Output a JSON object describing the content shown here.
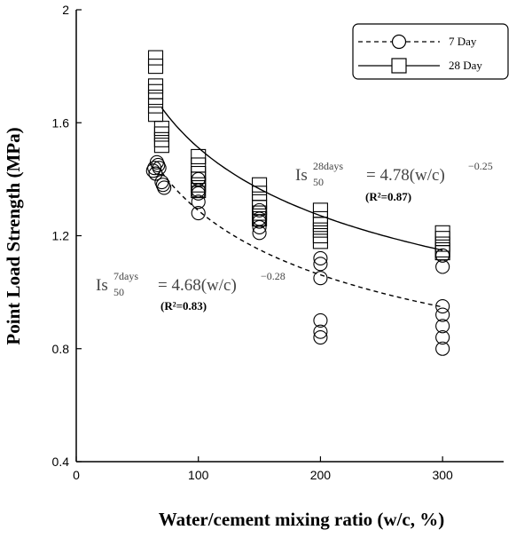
{
  "chart_data": {
    "type": "scatter",
    "title": "",
    "xlabel": "Water/cement mixing ratio (w/c, %)",
    "ylabel": "Point Load Strength (MPa)",
    "xlim": [
      0,
      350
    ],
    "ylim": [
      0.4,
      2.0
    ],
    "xticks": [
      0,
      100,
      200,
      300
    ],
    "yticks": [
      0.4,
      0.8,
      1.2,
      1.6,
      2.0
    ],
    "xtick_labels": [
      "0",
      "100",
      "200",
      "300"
    ],
    "ytick_labels": [
      "0.4",
      "0.8",
      "1.2",
      "1.6",
      "2"
    ],
    "grid": false,
    "legend_position": "top-right",
    "series": [
      {
        "name": "7 Day",
        "marker": "circle",
        "line_style": "dashed",
        "fit": {
          "a": 4.68,
          "b": -0.28,
          "x_from": 70,
          "x_to": 300
        },
        "points": [
          [
            63,
            1.43
          ],
          [
            64,
            1.44
          ],
          [
            65,
            1.42
          ],
          [
            66,
            1.46
          ],
          [
            67,
            1.45
          ],
          [
            68,
            1.44
          ],
          [
            70,
            1.39
          ],
          [
            71,
            1.38
          ],
          [
            72,
            1.37
          ],
          [
            100,
            1.4
          ],
          [
            100,
            1.36
          ],
          [
            100,
            1.35
          ],
          [
            100,
            1.32
          ],
          [
            100,
            1.28
          ],
          [
            150,
            1.29
          ],
          [
            150,
            1.26
          ],
          [
            150,
            1.25
          ],
          [
            150,
            1.23
          ],
          [
            150,
            1.21
          ],
          [
            200,
            1.12
          ],
          [
            200,
            1.1
          ],
          [
            200,
            1.05
          ],
          [
            200,
            0.9
          ],
          [
            200,
            0.86
          ],
          [
            200,
            0.84
          ],
          [
            300,
            1.13
          ],
          [
            300,
            1.09
          ],
          [
            300,
            0.95
          ],
          [
            300,
            0.92
          ],
          [
            300,
            0.88
          ],
          [
            300,
            0.84
          ],
          [
            300,
            0.8
          ]
        ]
      },
      {
        "name": "28 Day",
        "marker": "square",
        "line_style": "solid",
        "fit": {
          "a": 4.78,
          "b": -0.25,
          "x_from": 70,
          "x_to": 300
        },
        "points": [
          [
            65,
            1.83
          ],
          [
            65,
            1.8
          ],
          [
            65,
            1.73
          ],
          [
            65,
            1.71
          ],
          [
            65,
            1.69
          ],
          [
            65,
            1.66
          ],
          [
            65,
            1.63
          ],
          [
            70,
            1.58
          ],
          [
            70,
            1.56
          ],
          [
            70,
            1.54
          ],
          [
            70,
            1.52
          ],
          [
            100,
            1.48
          ],
          [
            100,
            1.45
          ],
          [
            100,
            1.42
          ],
          [
            100,
            1.4
          ],
          [
            100,
            1.38
          ],
          [
            100,
            1.36
          ],
          [
            150,
            1.38
          ],
          [
            150,
            1.35
          ],
          [
            150,
            1.32
          ],
          [
            150,
            1.3
          ],
          [
            150,
            1.28
          ],
          [
            150,
            1.26
          ],
          [
            200,
            1.29
          ],
          [
            200,
            1.26
          ],
          [
            200,
            1.24
          ],
          [
            200,
            1.22
          ],
          [
            200,
            1.2
          ],
          [
            200,
            1.18
          ],
          [
            300,
            1.21
          ],
          [
            300,
            1.19
          ],
          [
            300,
            1.17
          ],
          [
            300,
            1.15
          ],
          [
            300,
            1.14
          ]
        ]
      }
    ],
    "annotations": [
      {
        "id": "eq28",
        "base": "Is",
        "sup": "28days",
        "sub": "50",
        "rhs": "= 4.78(w/c)",
        "exp": "−0.25",
        "r2": "(R²=0.87)"
      },
      {
        "id": "eq7",
        "base": "Is",
        "sup": "7days",
        "sub": "50",
        "rhs": "= 4.68(w/c)",
        "exp": "−0.28",
        "r2": "(R²=0.83)"
      }
    ]
  }
}
